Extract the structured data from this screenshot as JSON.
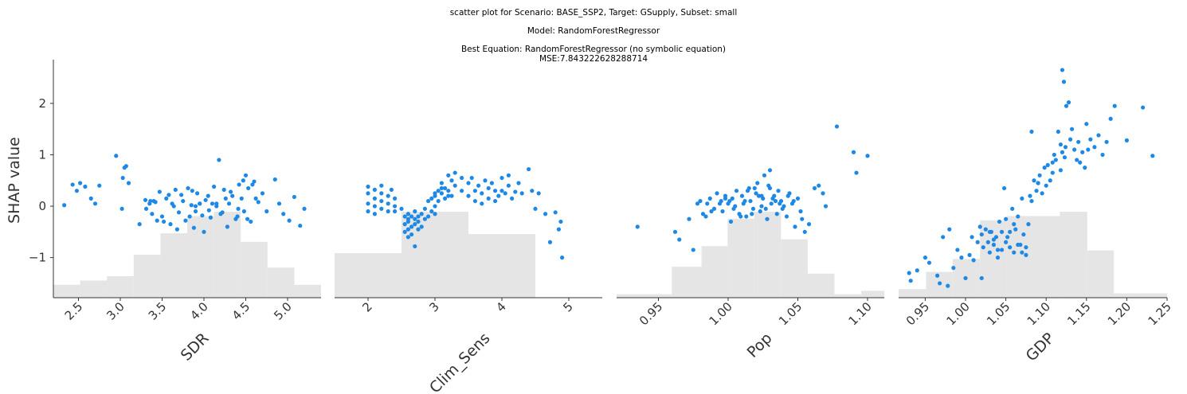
{
  "titles": {
    "line1": "scatter plot for Scenario: BASE_SSP2, Target: GSupply, Subset: small",
    "line2": "Model: RandomForestRegressor",
    "line3": "Best Equation: RandomForestRegressor (no symbolic equation)",
    "line4": "MSE:7.843222628288714"
  },
  "colors": {
    "points": "#1e88e5",
    "hist": "#e5e5e5",
    "axis": "#333333"
  },
  "chart_data": [
    {
      "type": "scatter",
      "xlabel": "SDR",
      "ylabel": "SHAP value",
      "xlim": [
        2.2,
        5.4
      ],
      "ylim": [
        -1.78,
        2.85
      ],
      "xticks": [
        "2.5",
        "3.0",
        "3.5",
        "4.0",
        "4.5",
        "5.0"
      ],
      "yticks": [
        "−1",
        "0",
        "1",
        "2"
      ],
      "hist_counts": [
        3,
        4,
        5,
        10,
        15,
        19,
        20,
        13,
        7,
        3
      ],
      "hist_edges": [
        2.2,
        2.52,
        2.84,
        3.16,
        3.48,
        3.8,
        4.12,
        4.44,
        4.76,
        5.08,
        5.4
      ],
      "x": [
        2.33,
        2.43,
        2.48,
        2.52,
        2.58,
        2.65,
        2.7,
        2.75,
        2.95,
        3.03,
        3.05,
        3.07,
        3.02,
        3.1,
        3.23,
        3.3,
        3.35,
        3.38,
        3.42,
        3.47,
        3.5,
        3.55,
        3.6,
        3.62,
        3.66,
        3.7,
        3.73,
        3.78,
        3.81,
        3.85,
        3.88,
        3.92,
        3.95,
        3.98,
        4.02,
        4.05,
        4.08,
        4.12,
        4.15,
        4.18,
        4.2,
        4.24,
        4.28,
        4.3,
        4.34,
        4.38,
        4.42,
        4.45,
        4.48,
        4.5,
        4.53,
        4.56,
        4.6,
        4.65,
        4.7,
        4.75,
        4.85,
        4.9,
        4.95,
        5.02,
        5.08,
        5.15,
        5.2,
        3.31,
        3.4,
        3.52,
        3.58,
        3.68,
        3.75,
        3.83,
        3.9,
        4.0,
        4.1,
        4.22,
        4.32,
        4.41,
        4.47,
        4.52,
        4.62,
        3.36,
        3.44,
        3.64,
        3.86,
        4.06,
        4.26,
        4.4,
        4.58,
        3.9,
        4.15,
        3.95
      ],
      "y": [
        0.02,
        0.42,
        0.3,
        0.45,
        0.38,
        0.15,
        0.05,
        0.4,
        0.98,
        0.55,
        0.75,
        0.78,
        -0.05,
        0.45,
        -0.35,
        0.12,
        0.05,
        -0.15,
        0.08,
        0.28,
        -0.2,
        0.15,
        -0.35,
        0.05,
        0.32,
        -0.12,
        0.22,
        -0.28,
        0.35,
        0.02,
        -0.42,
        0.25,
        0.05,
        -0.18,
        0.12,
        0.2,
        -0.22,
        0.38,
        0.05,
        0.9,
        -0.15,
        0.32,
        -0.4,
        0.05,
        0.2,
        -0.25,
        0.42,
        0.15,
        -0.1,
        0.6,
        0.35,
        -0.3,
        0.48,
        0.08,
        0.25,
        -0.1,
        0.52,
        0.05,
        -0.15,
        -0.28,
        0.18,
        -0.38,
        -0.05,
        -0.05,
        0.1,
        -0.3,
        0.22,
        -0.45,
        0.1,
        -0.2,
        0.0,
        -0.5,
        0.05,
        -0.12,
        0.28,
        -0.05,
        0.5,
        -0.25,
        0.15,
        0.1,
        -0.28,
        0.0,
        0.3,
        -0.08,
        0.15,
        -0.2,
        0.42,
        -0.1,
        0.0,
        0.05
      ]
    },
    {
      "type": "scatter",
      "xlabel": "Clim_Sens",
      "ylabel": "",
      "xlim": [
        1.5,
        5.5
      ],
      "ylim": [
        -1.78,
        2.85
      ],
      "xticks": [
        "2",
        "3",
        "4",
        "5"
      ],
      "yticks": [],
      "hist_counts": [
        14,
        27,
        20,
        0
      ],
      "hist_edges": [
        1.5,
        2.5,
        3.5,
        4.5,
        5.5
      ],
      "x": [
        2.0,
        2.0,
        2.0,
        2.0,
        2.1,
        2.1,
        2.1,
        2.1,
        2.2,
        2.2,
        2.2,
        2.2,
        2.3,
        2.3,
        2.3,
        2.35,
        2.4,
        2.4,
        2.4,
        2.5,
        2.55,
        2.55,
        2.55,
        2.6,
        2.6,
        2.6,
        2.6,
        2.6,
        2.65,
        2.65,
        2.65,
        2.7,
        2.7,
        2.7,
        2.7,
        2.75,
        2.75,
        2.75,
        2.8,
        2.8,
        2.85,
        2.85,
        2.9,
        2.9,
        2.95,
        2.95,
        3.0,
        3.0,
        3.0,
        3.05,
        3.05,
        3.1,
        3.1,
        3.15,
        3.15,
        3.2,
        3.2,
        3.25,
        3.25,
        3.3,
        3.3,
        3.4,
        3.4,
        3.5,
        3.5,
        3.55,
        3.6,
        3.6,
        3.65,
        3.7,
        3.7,
        3.75,
        3.8,
        3.8,
        3.85,
        3.9,
        3.9,
        3.95,
        4.0,
        4.0,
        4.05,
        4.1,
        4.1,
        4.15,
        4.2,
        4.25,
        4.3,
        4.4,
        4.45,
        4.5,
        4.55,
        4.65,
        4.72,
        4.8,
        4.85,
        4.9,
        4.88,
        3.0,
        3.1,
        3.2
      ],
      "y": [
        0.38,
        0.25,
        0.05,
        -0.1,
        0.32,
        0.15,
        0.0,
        -0.15,
        0.25,
        0.1,
        -0.05,
        0.4,
        0.2,
        0.05,
        -0.1,
        0.32,
        0.15,
        0.0,
        -0.1,
        -0.05,
        -0.2,
        -0.35,
        -0.5,
        -0.15,
        -0.3,
        -0.45,
        -0.6,
        -0.25,
        -0.2,
        -0.4,
        -0.55,
        -0.25,
        -0.1,
        -0.35,
        -0.78,
        -0.2,
        -0.45,
        -0.3,
        -0.15,
        -0.4,
        -0.25,
        -0.05,
        0.1,
        -0.2,
        0.15,
        -0.1,
        0.2,
        0.0,
        -0.15,
        0.3,
        0.1,
        0.45,
        0.25,
        0.35,
        0.15,
        0.6,
        0.3,
        0.5,
        0.2,
        0.65,
        0.4,
        0.55,
        0.3,
        0.45,
        0.2,
        0.55,
        0.3,
        0.1,
        0.4,
        0.25,
        0.05,
        0.5,
        0.35,
        0.15,
        0.45,
        0.3,
        0.1,
        0.2,
        0.55,
        0.3,
        0.25,
        0.6,
        0.4,
        0.15,
        0.28,
        0.45,
        0.25,
        0.72,
        0.3,
        -0.05,
        0.25,
        -0.15,
        -0.7,
        -0.12,
        -0.45,
        -1.0,
        -0.3,
        0.25,
        0.35,
        0.2
      ]
    },
    {
      "type": "scatter",
      "xlabel": "Pop",
      "ylabel": "",
      "xlim": [
        0.92,
        1.112
      ],
      "ylim": [
        -1.78,
        2.85
      ],
      "xticks": [
        "0.95",
        "1.00",
        "1.05",
        "1.10"
      ],
      "yticks": [],
      "hist_counts": [
        1,
        9,
        15,
        23,
        25,
        17,
        7,
        1,
        2
      ],
      "hist_edges": [
        0.92,
        0.9596,
        0.9809,
        0.9996,
        1.0187,
        1.0379,
        1.0571,
        1.0763,
        1.0955,
        1.112
      ],
      "x": [
        0.935,
        0.962,
        0.965,
        0.972,
        0.975,
        0.98,
        0.982,
        0.985,
        0.987,
        0.99,
        0.992,
        0.995,
        0.996,
        0.998,
        1.0,
        1.002,
        1.003,
        1.005,
        1.006,
        1.008,
        1.01,
        1.011,
        1.013,
        1.015,
        1.016,
        1.018,
        1.02,
        1.021,
        1.023,
        1.025,
        1.026,
        1.028,
        1.03,
        1.031,
        1.033,
        1.035,
        1.036,
        1.038,
        1.04,
        1.042,
        1.044,
        1.046,
        1.048,
        1.05,
        1.052,
        1.055,
        1.058,
        1.062,
        1.065,
        1.068,
        1.07,
        1.078,
        1.09,
        1.092,
        1.1,
        0.978,
        0.988,
        0.998,
        1.004,
        1.012,
        1.017,
        1.022,
        1.027,
        1.032,
        1.037,
        1.043,
        0.984,
        0.994,
        1.001,
        1.009,
        1.019,
        1.024,
        1.029,
        1.034,
        1.039,
        1.047,
        1.053,
        1.014,
        1.024,
        1.03
      ],
      "y": [
        -0.4,
        -0.5,
        -0.65,
        -0.25,
        -0.85,
        0.1,
        -0.15,
        0.05,
        0.15,
        -0.05,
        0.25,
        0.1,
        -0.1,
        0.2,
        0.05,
        -0.3,
        0.15,
        0.0,
        0.3,
        -0.15,
        0.2,
        0.05,
        -0.2,
        0.35,
        0.1,
        -0.05,
        0.25,
        0.45,
        -0.1,
        0.15,
        0.6,
        -0.25,
        0.35,
        0.05,
        0.2,
        -0.15,
        0.3,
        0.1,
        0.0,
        -0.2,
        0.25,
        0.05,
        -0.4,
        0.15,
        -0.1,
        -0.5,
        -0.35,
        0.35,
        0.4,
        0.25,
        0.0,
        1.55,
        1.05,
        0.65,
        0.98,
        0.05,
        -0.1,
        0.15,
        -0.05,
        0.1,
        -0.15,
        0.2,
        -0.05,
        0.15,
        0.05,
        0.2,
        -0.2,
        0.05,
        0.1,
        -0.2,
        0.35,
        0.0,
        0.4,
        0.1,
        -0.05,
        0.1,
        -0.25,
        0.3,
        0.2,
        0.7
      ]
    },
    {
      "type": "scatter",
      "xlabel": "GDP",
      "ylabel": "",
      "xlim": [
        0.917,
        1.25
      ],
      "ylim": [
        -1.78,
        2.85
      ],
      "xticks": [
        "0.95",
        "1.00",
        "1.05",
        "1.10",
        "1.15",
        "1.20",
        "1.25"
      ],
      "yticks": [],
      "hist_counts": [
        2,
        6,
        9,
        18,
        19,
        19,
        20,
        11,
        1,
        1
      ],
      "hist_edges": [
        0.917,
        0.951,
        0.984,
        1.018,
        1.051,
        1.084,
        1.117,
        1.151,
        1.184,
        1.217,
        1.25
      ],
      "x": [
        0.93,
        0.932,
        0.94,
        0.95,
        0.955,
        0.965,
        0.968,
        0.972,
        0.978,
        0.98,
        0.985,
        0.99,
        0.995,
        1.0,
        1.005,
        1.008,
        1.01,
        1.015,
        1.018,
        1.02,
        1.022,
        1.025,
        1.028,
        1.03,
        1.032,
        1.035,
        1.038,
        1.04,
        1.042,
        1.045,
        1.048,
        1.05,
        1.052,
        1.055,
        1.058,
        1.06,
        1.062,
        1.065,
        1.068,
        1.07,
        1.072,
        1.075,
        1.078,
        1.08,
        1.082,
        1.085,
        1.088,
        1.09,
        1.092,
        1.095,
        1.098,
        1.1,
        1.102,
        1.105,
        1.108,
        1.11,
        1.112,
        1.115,
        1.118,
        1.12,
        1.122,
        1.125,
        1.128,
        1.13,
        1.132,
        1.135,
        1.138,
        1.14,
        1.142,
        1.145,
        1.148,
        1.15,
        1.152,
        1.155,
        1.16,
        1.165,
        1.17,
        1.175,
        1.18,
        1.185,
        1.2,
        1.22,
        1.232,
        1.12,
        1.123,
        1.118,
        1.124,
        1.108,
        1.09,
        1.082,
        1.02,
        1.03,
        1.04,
        1.05,
        1.06,
        1.07,
        1.035,
        1.045,
        1.055,
        1.065,
        1.075
      ],
      "y": [
        -1.3,
        -1.45,
        -1.25,
        -1.0,
        -1.1,
        -1.35,
        -1.5,
        -0.6,
        -1.55,
        -0.45,
        -1.2,
        -0.85,
        -1.0,
        -1.4,
        -0.95,
        -0.6,
        -1.05,
        -0.7,
        -0.4,
        -0.55,
        -0.8,
        -0.45,
        -0.7,
        -0.9,
        -0.5,
        -0.75,
        -0.6,
        -0.85,
        -0.3,
        -0.5,
        0.35,
        -0.25,
        -0.6,
        -0.8,
        -0.05,
        -0.9,
        -0.45,
        -0.2,
        -0.75,
        0.15,
        -0.55,
        -0.8,
        -0.35,
        0.2,
        1.45,
        0.5,
        0.3,
        0.45,
        0.6,
        0.25,
        0.75,
        0.4,
        0.8,
        0.5,
        0.65,
        1.0,
        0.9,
        1.45,
        1.2,
        2.65,
        2.42,
        1.95,
        2.02,
        1.3,
        1.5,
        1.1,
        0.9,
        1.25,
        0.85,
        1.05,
        0.75,
        1.6,
        1.1,
        1.3,
        1.15,
        1.38,
        1.0,
        1.25,
        1.7,
        1.95,
        1.28,
        1.92,
        0.98,
        1.05,
        0.95,
        0.7,
        1.15,
        0.85,
        0.45,
        0.1,
        -1.4,
        -0.5,
        -1.0,
        -0.7,
        -0.35,
        -0.9,
        -0.65,
        -0.85,
        -0.5,
        -0.75,
        -0.95
      ]
    }
  ]
}
